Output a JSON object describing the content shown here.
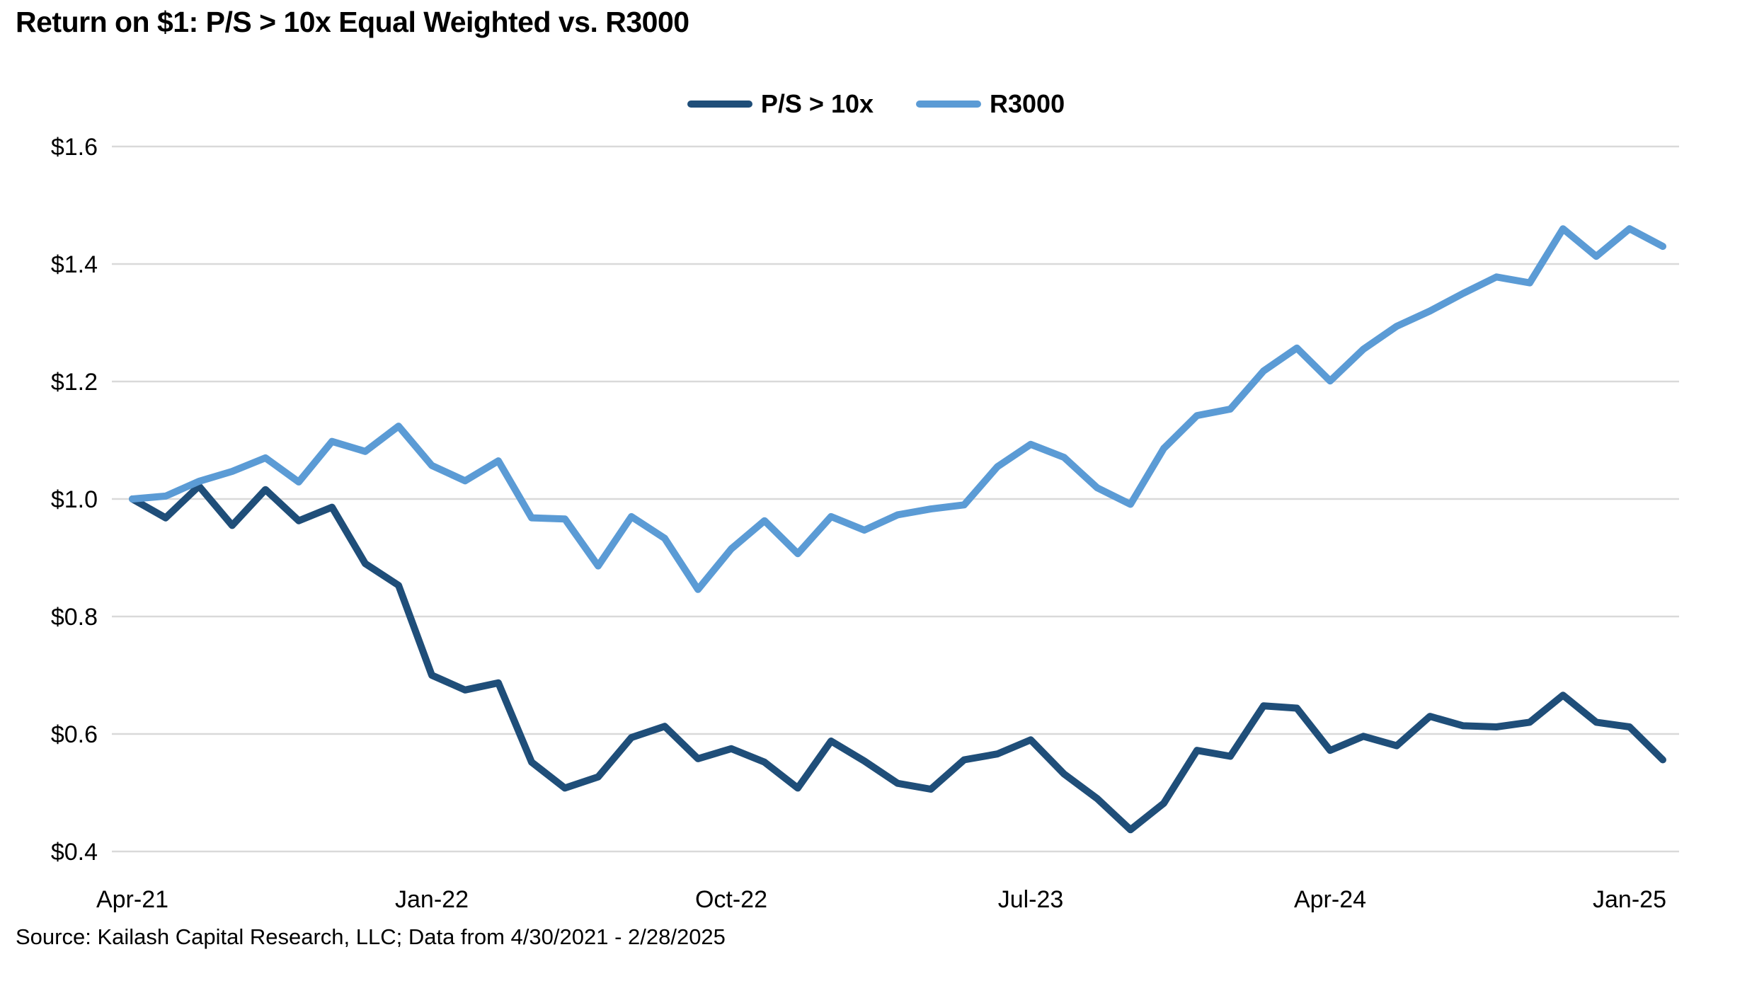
{
  "title": "Return on $1: P/S > 10x Equal Weighted vs. R3000",
  "source_note": "Source: Kailash Capital Research, LLC; Data from 4/30/2021 - 2/28/2025",
  "legend": {
    "items": [
      {
        "label": "P/S > 10x",
        "color": "#1F4E79"
      },
      {
        "label": "R3000",
        "color": "#5B9BD5"
      }
    ]
  },
  "colors": {
    "ps10x_line": "#1F4E79",
    "r3000_line": "#5B9BD5",
    "gridline": "#d9d9d9",
    "text": "#000000",
    "background": "#ffffff"
  },
  "chart_data": {
    "type": "line",
    "title": "Return on $1: P/S > 10x Equal Weighted vs. R3000",
    "xlabel": "",
    "ylabel": "",
    "ylim": [
      0.4,
      1.6
    ],
    "grid": "horizontal",
    "legend_position": "top-center",
    "y_ticks": {
      "values": [
        1.6,
        1.4,
        1.2,
        1.0,
        0.8,
        0.6,
        0.4
      ],
      "labels": [
        "$1.6",
        "$1.4",
        "$1.2",
        "$1.0",
        "$0.8",
        "$0.6",
        "$0.4"
      ]
    },
    "x_tick_indices": [
      0,
      9,
      18,
      27,
      36,
      45
    ],
    "x_tick_labels": [
      "Apr-21",
      "Jan-22",
      "Oct-22",
      "Jul-23",
      "Apr-24",
      "Jan-25"
    ],
    "categories": [
      "Apr-21",
      "May-21",
      "Jun-21",
      "Jul-21",
      "Aug-21",
      "Sep-21",
      "Oct-21",
      "Nov-21",
      "Dec-21",
      "Jan-22",
      "Feb-22",
      "Mar-22",
      "Apr-22",
      "May-22",
      "Jun-22",
      "Jul-22",
      "Aug-22",
      "Sep-22",
      "Oct-22",
      "Nov-22",
      "Dec-22",
      "Jan-23",
      "Feb-23",
      "Mar-23",
      "Apr-23",
      "May-23",
      "Jun-23",
      "Jul-23",
      "Aug-23",
      "Sep-23",
      "Oct-23",
      "Nov-23",
      "Dec-23",
      "Jan-24",
      "Feb-24",
      "Mar-24",
      "Apr-24",
      "May-24",
      "Jun-24",
      "Jul-24",
      "Aug-24",
      "Sep-24",
      "Oct-24",
      "Nov-24",
      "Dec-24",
      "Jan-25",
      "Feb-25"
    ],
    "series": [
      {
        "name": "P/S > 10x",
        "color": "#1F4E79",
        "values": [
          1.0,
          0.968,
          1.022,
          0.955,
          1.016,
          0.963,
          0.986,
          0.89,
          0.853,
          0.7,
          0.675,
          0.687,
          0.552,
          0.508,
          0.527,
          0.594,
          0.613,
          0.558,
          0.575,
          0.552,
          0.508,
          0.588,
          0.554,
          0.516,
          0.506,
          0.556,
          0.566,
          0.59,
          0.532,
          0.49,
          0.437,
          0.482,
          0.572,
          0.562,
          0.648,
          0.644,
          0.572,
          0.596,
          0.58,
          0.63,
          0.614,
          0.612,
          0.62,
          0.666,
          0.62,
          0.612,
          0.556
        ]
      },
      {
        "name": "R3000",
        "color": "#5B9BD5",
        "values": [
          1.0,
          1.005,
          1.03,
          1.047,
          1.07,
          1.029,
          1.098,
          1.081,
          1.124,
          1.057,
          1.031,
          1.065,
          0.968,
          0.966,
          0.886,
          0.97,
          0.933,
          0.846,
          0.915,
          0.963,
          0.907,
          0.97,
          0.947,
          0.973,
          0.983,
          0.99,
          1.055,
          1.093,
          1.071,
          1.019,
          0.991,
          1.086,
          1.142,
          1.153,
          1.218,
          1.257,
          1.201,
          1.255,
          1.294,
          1.32,
          1.35,
          1.378,
          1.368,
          1.46,
          1.413,
          1.46,
          1.43
        ]
      }
    ]
  }
}
